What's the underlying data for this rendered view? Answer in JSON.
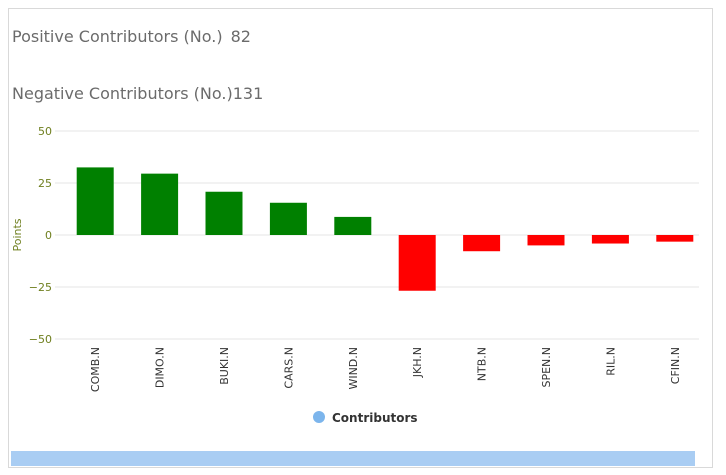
{
  "stats": {
    "positive_label": "Positive Contributors (No.)",
    "positive_value": "82",
    "negative_label": "Negative Contributors (No.)",
    "negative_value": "131"
  },
  "colors": {
    "positive": "#008000",
    "negative": "#ff0000",
    "axis_text": "#6f7f1f",
    "grid": "#e6e6e6",
    "legend_marker": "#7cb5ec",
    "scrollbar": "#a9cdf3"
  },
  "chart_data": {
    "type": "bar",
    "title": "",
    "xlabel": "",
    "ylabel": "Points",
    "ylim": [
      -50,
      50
    ],
    "yticks": [
      50,
      25,
      0,
      -25,
      -50
    ],
    "ytick_labels": [
      "50",
      "25",
      "0",
      "−25",
      "−50"
    ],
    "grid": true,
    "legend_position": "bottom-center",
    "categories": [
      "COMB.N",
      "DIMO.N",
      "BUKI.N",
      "CARS.N",
      "WIND.N",
      "JKH.N",
      "NTB.N",
      "SPEN.N",
      "RIL.N",
      "CFIN.N"
    ],
    "series": [
      {
        "name": "Contributors",
        "values": [
          32.5,
          29.5,
          20.8,
          15.5,
          8.7,
          -26.8,
          -7.8,
          -5.0,
          -4.1,
          -3.2
        ]
      }
    ]
  }
}
